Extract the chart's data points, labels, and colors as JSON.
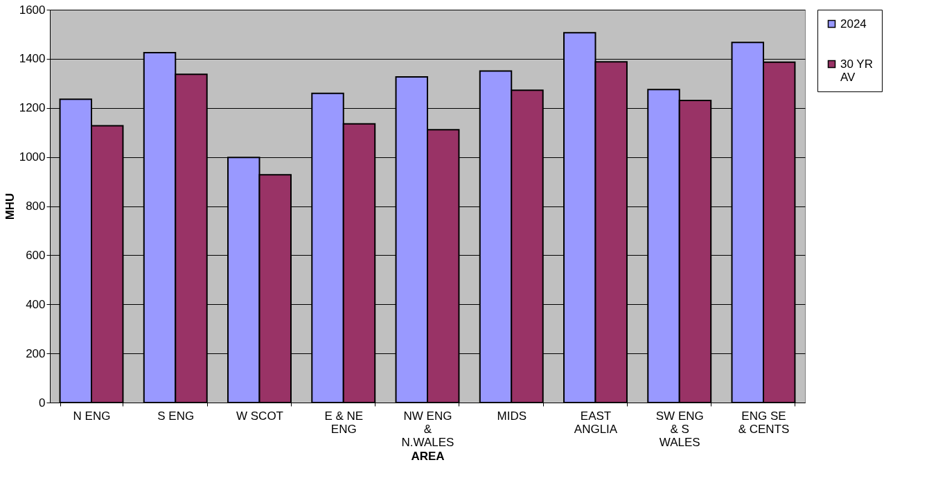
{
  "chart_data": {
    "type": "bar",
    "xlabel": "AREA",
    "ylabel": "MHU",
    "categories": [
      "N ENG",
      "S ENG",
      "W SCOT",
      "E & NE ENG",
      "NW ENG & N.WALES",
      "MIDS",
      "EAST ANGLIA",
      "SW ENG & S WALES",
      "ENG SE & CENTS"
    ],
    "series": [
      {
        "name": "2024",
        "color": "#9999ff",
        "values": [
          1235,
          1425,
          998,
          1259,
          1326,
          1350,
          1506,
          1275,
          1467
        ]
      },
      {
        "name": "30 YR AV",
        "color": "#993366",
        "values": [
          1127,
          1337,
          928,
          1135,
          1111,
          1272,
          1388,
          1230,
          1386
        ]
      }
    ],
    "ylim": [
      0,
      1600
    ],
    "yticks": [
      0,
      200,
      400,
      600,
      800,
      1000,
      1200,
      1400,
      1600
    ],
    "grid": "y",
    "legend": "right"
  }
}
